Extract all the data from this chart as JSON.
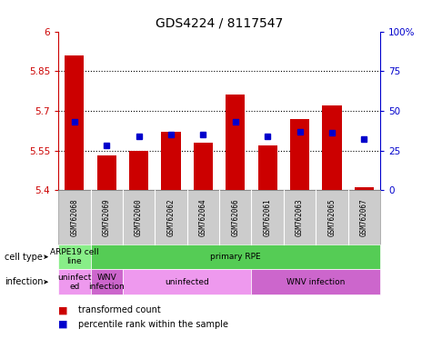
{
  "title": "GDS4224 / 8117547",
  "samples": [
    "GSM762068",
    "GSM762069",
    "GSM762060",
    "GSM762062",
    "GSM762064",
    "GSM762066",
    "GSM762061",
    "GSM762063",
    "GSM762065",
    "GSM762067"
  ],
  "transformed_counts": [
    5.91,
    5.53,
    5.55,
    5.62,
    5.58,
    5.76,
    5.57,
    5.67,
    5.72,
    5.41
  ],
  "percentile_ranks": [
    43,
    28,
    34,
    35,
    35,
    43,
    34,
    37,
    36,
    32
  ],
  "ylim_left": [
    5.4,
    6.0
  ],
  "ylim_right": [
    0,
    100
  ],
  "yticks_left": [
    5.4,
    5.55,
    5.7,
    5.85,
    6.0
  ],
  "ytick_labels_left": [
    "5.4",
    "5.55",
    "5.7",
    "5.85",
    "6"
  ],
  "yticks_right": [
    0,
    25,
    50,
    75,
    100
  ],
  "ytick_labels_right": [
    "0",
    "25",
    "50",
    "75",
    "100%"
  ],
  "bar_color": "#cc0000",
  "dot_color": "#0000cc",
  "bar_width": 0.6,
  "cell_type_groups": [
    {
      "label": "ARPE19 cell\nline",
      "indices": [
        0
      ],
      "color": "#88ee88"
    },
    {
      "label": "primary RPE",
      "indices": [
        1,
        2,
        3,
        4,
        5,
        6,
        7,
        8,
        9
      ],
      "color": "#55cc55"
    }
  ],
  "infection_groups": [
    {
      "label": "uninfect\ned",
      "indices": [
        0
      ],
      "color": "#ee99ee"
    },
    {
      "label": "WNV\ninfection",
      "indices": [
        1
      ],
      "color": "#cc66cc"
    },
    {
      "label": "uninfected",
      "indices": [
        2,
        3,
        4,
        5
      ],
      "color": "#ee99ee"
    },
    {
      "label": "WNV infection",
      "indices": [
        6,
        7,
        8,
        9
      ],
      "color": "#cc66cc"
    }
  ],
  "legend_bar_label": "transformed count",
  "legend_dot_label": "percentile rank within the sample",
  "tick_area_color": "#cccccc",
  "tick_border_color": "#999999"
}
